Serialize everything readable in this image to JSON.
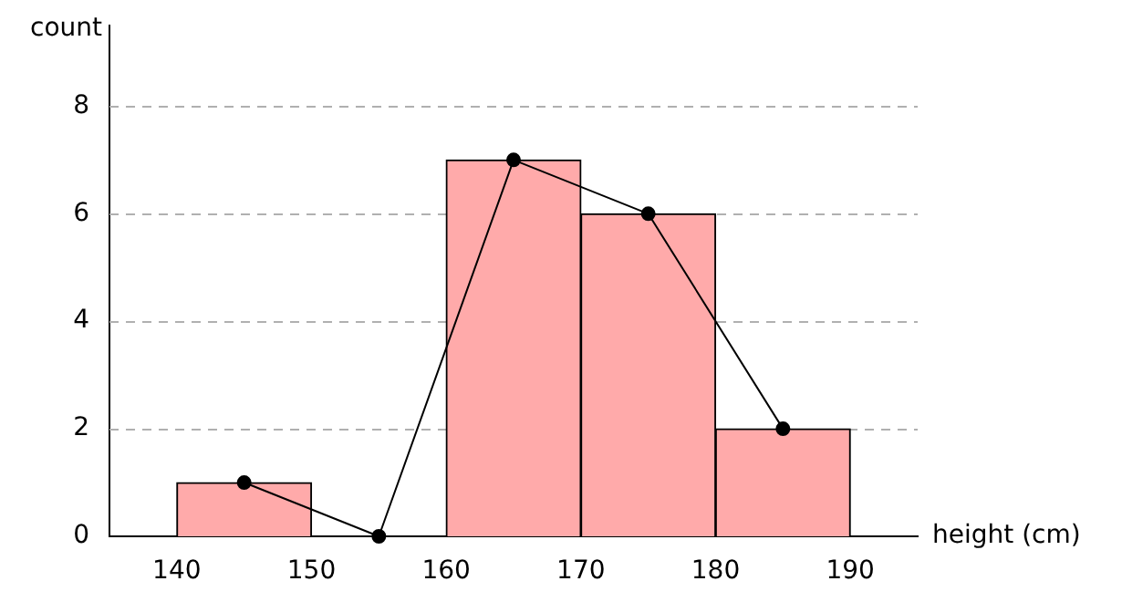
{
  "chart_data": {
    "type": "histogram",
    "xlabel": "height (cm)",
    "ylabel": "count",
    "bins": [
      140,
      150,
      160,
      170,
      180,
      190
    ],
    "values": [
      1,
      0,
      7,
      6,
      2
    ],
    "color": "#ffaaaa",
    "series": [
      {
        "type": "line",
        "color": "#000000",
        "x": [
          145,
          155,
          165,
          175,
          185
        ],
        "values": [
          1,
          0,
          7,
          6,
          2
        ]
      }
    ],
    "xlim": [
      135,
      195
    ],
    "xticks": [
      140,
      150,
      160,
      170,
      180,
      190
    ],
    "ylim": [
      0,
      9.5
    ],
    "yticks": [
      0,
      2,
      4,
      6,
      8
    ],
    "grid": "y",
    "marker": "circle",
    "line_style": "solid",
    "legend": false
  }
}
